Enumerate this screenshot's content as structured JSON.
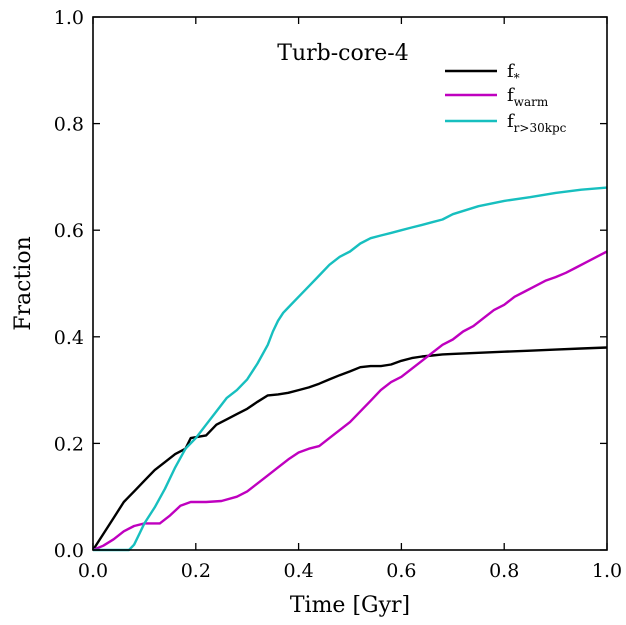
{
  "chart_data": {
    "type": "line",
    "title": "Turb-core-4",
    "xlabel": "Time [Gyr]",
    "ylabel": "Fraction",
    "xlim": [
      0.0,
      1.0
    ],
    "ylim": [
      0.0,
      1.0
    ],
    "xticks": [
      "0.0",
      "0.2",
      "0.4",
      "0.6",
      "0.8",
      "1.0"
    ],
    "yticks": [
      "0.0",
      "0.2",
      "0.4",
      "0.6",
      "0.8",
      "1.0"
    ],
    "grid": false,
    "legend_position": "upper-right",
    "series": [
      {
        "name": "f*",
        "legend_main": "f",
        "legend_sub": "*",
        "color": "#000000",
        "x": [
          0.0,
          0.02,
          0.04,
          0.06,
          0.08,
          0.1,
          0.12,
          0.14,
          0.16,
          0.18,
          0.19,
          0.22,
          0.24,
          0.26,
          0.28,
          0.3,
          0.32,
          0.34,
          0.36,
          0.38,
          0.4,
          0.42,
          0.44,
          0.46,
          0.48,
          0.5,
          0.52,
          0.54,
          0.56,
          0.58,
          0.6,
          0.62,
          0.64,
          0.66,
          0.68,
          0.7,
          0.75,
          0.8,
          0.85,
          0.9,
          0.95,
          1.0
        ],
        "y": [
          0.0,
          0.03,
          0.06,
          0.09,
          0.11,
          0.13,
          0.15,
          0.165,
          0.18,
          0.19,
          0.21,
          0.215,
          0.235,
          0.245,
          0.255,
          0.265,
          0.278,
          0.29,
          0.292,
          0.295,
          0.3,
          0.305,
          0.312,
          0.32,
          0.328,
          0.335,
          0.343,
          0.345,
          0.345,
          0.348,
          0.355,
          0.36,
          0.363,
          0.365,
          0.367,
          0.368,
          0.37,
          0.372,
          0.374,
          0.376,
          0.378,
          0.38
        ]
      },
      {
        "name": "fwarm",
        "legend_main": "f",
        "legend_sub": "warm",
        "color": "#bf00bf",
        "x": [
          0.0,
          0.02,
          0.04,
          0.06,
          0.08,
          0.1,
          0.13,
          0.15,
          0.17,
          0.19,
          0.22,
          0.25,
          0.28,
          0.3,
          0.32,
          0.34,
          0.36,
          0.38,
          0.4,
          0.42,
          0.44,
          0.46,
          0.48,
          0.5,
          0.52,
          0.54,
          0.56,
          0.58,
          0.6,
          0.62,
          0.64,
          0.66,
          0.68,
          0.7,
          0.72,
          0.74,
          0.76,
          0.78,
          0.8,
          0.82,
          0.84,
          0.86,
          0.88,
          0.9,
          0.92,
          0.94,
          0.96,
          0.98,
          1.0
        ],
        "y": [
          0.0,
          0.008,
          0.02,
          0.035,
          0.045,
          0.05,
          0.05,
          0.065,
          0.083,
          0.09,
          0.09,
          0.092,
          0.1,
          0.11,
          0.125,
          0.14,
          0.155,
          0.17,
          0.183,
          0.19,
          0.195,
          0.21,
          0.225,
          0.24,
          0.26,
          0.28,
          0.3,
          0.315,
          0.325,
          0.34,
          0.355,
          0.37,
          0.385,
          0.395,
          0.41,
          0.42,
          0.435,
          0.45,
          0.46,
          0.475,
          0.485,
          0.495,
          0.505,
          0.512,
          0.52,
          0.53,
          0.54,
          0.55,
          0.56
        ]
      },
      {
        "name": "fr>30kpc",
        "legend_main": "f",
        "legend_sub": "r>30kpc",
        "color": "#17bfbf",
        "x": [
          0.0,
          0.07,
          0.08,
          0.09,
          0.1,
          0.12,
          0.14,
          0.16,
          0.18,
          0.2,
          0.22,
          0.24,
          0.26,
          0.28,
          0.3,
          0.32,
          0.34,
          0.35,
          0.36,
          0.37,
          0.38,
          0.4,
          0.42,
          0.44,
          0.46,
          0.48,
          0.5,
          0.52,
          0.54,
          0.56,
          0.58,
          0.6,
          0.62,
          0.64,
          0.66,
          0.68,
          0.7,
          0.75,
          0.8,
          0.85,
          0.9,
          0.95,
          1.0
        ],
        "y": [
          0.0,
          0.0,
          0.01,
          0.03,
          0.05,
          0.08,
          0.115,
          0.155,
          0.19,
          0.21,
          0.235,
          0.26,
          0.285,
          0.3,
          0.32,
          0.35,
          0.385,
          0.41,
          0.43,
          0.445,
          0.455,
          0.475,
          0.495,
          0.515,
          0.535,
          0.55,
          0.56,
          0.575,
          0.585,
          0.59,
          0.595,
          0.6,
          0.605,
          0.61,
          0.615,
          0.62,
          0.63,
          0.645,
          0.655,
          0.662,
          0.67,
          0.676,
          0.68
        ]
      }
    ]
  }
}
